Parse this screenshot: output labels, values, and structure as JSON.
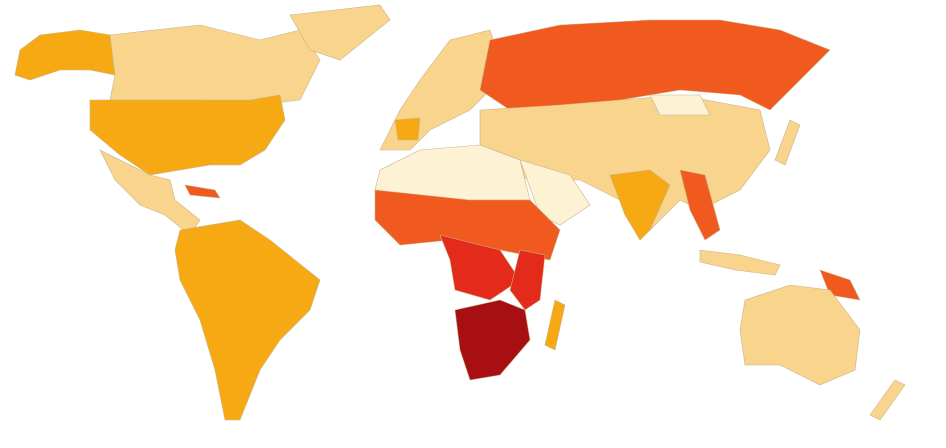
{
  "map": {
    "palette": [
      "#fde7b0",
      "#f8d48c",
      "#f7a914",
      "#f15a1e",
      "#e32a1b",
      "#a70f13",
      "#fdf2d4"
    ]
  }
}
